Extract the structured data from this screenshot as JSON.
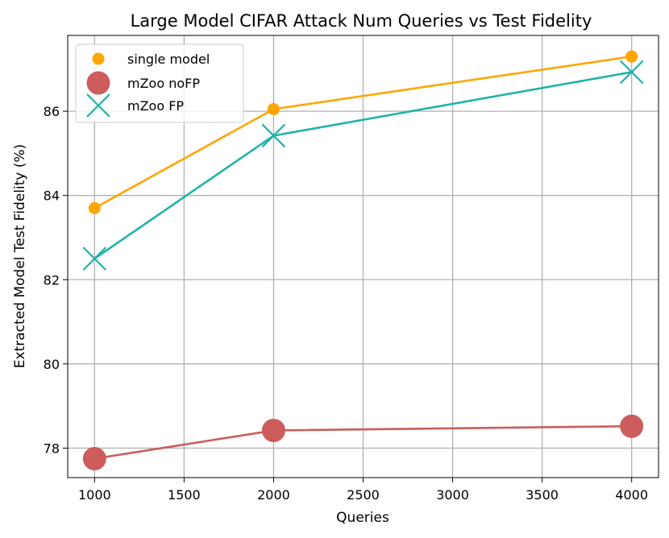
{
  "chart_data": {
    "type": "line",
    "title": "Large Model CIFAR Attack Num Queries vs Test Fidelity",
    "xlabel": "Queries",
    "ylabel": "Extracted Model Test Fidelity (%)",
    "x": [
      1000,
      2000,
      4000
    ],
    "xlim": [
      850,
      4150
    ],
    "ylim": [
      77.3,
      87.8
    ],
    "xticks": [
      1000,
      1500,
      2000,
      2500,
      3000,
      3500,
      4000
    ],
    "yticks": [
      78,
      80,
      82,
      84,
      86
    ],
    "grid": true,
    "legend_position": "top-left",
    "series": [
      {
        "name": "single model",
        "values": [
          83.7,
          86.05,
          87.3
        ],
        "color": "#FFA500",
        "marker": "circle-small"
      },
      {
        "name": "mZoo noFP",
        "values": [
          77.75,
          78.42,
          78.52
        ],
        "color": "#CD5C5C",
        "marker": "circle-large"
      },
      {
        "name": "mZoo FP",
        "values": [
          82.5,
          85.42,
          86.93
        ],
        "color": "#20B2AA",
        "marker": "x"
      }
    ]
  }
}
